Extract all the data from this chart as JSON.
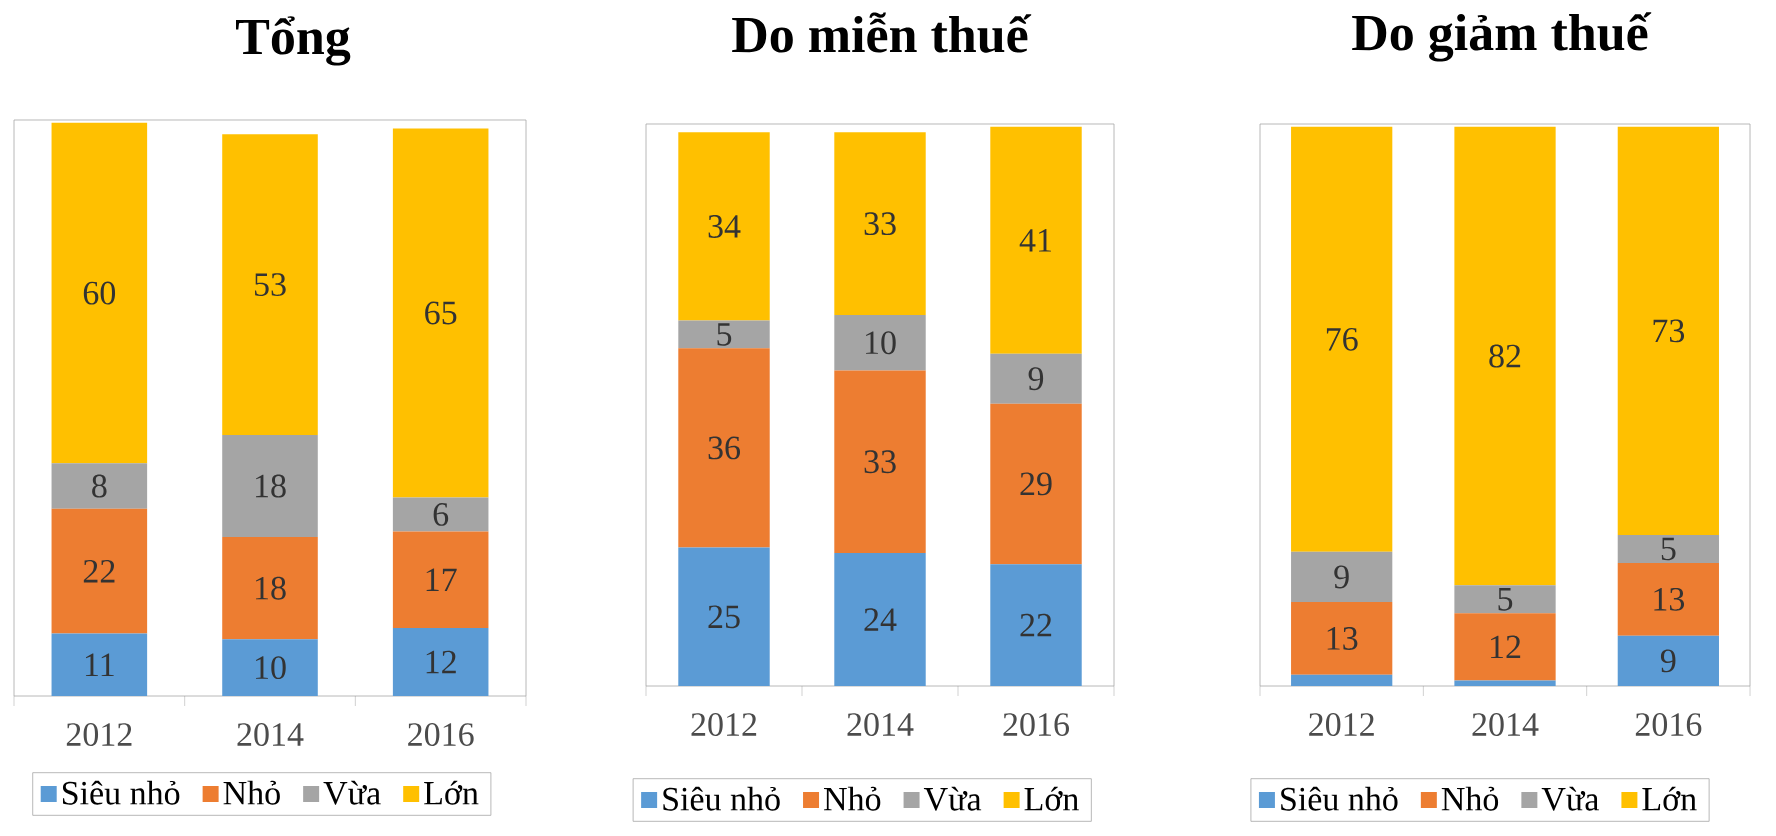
{
  "chart_data": [
    {
      "type": "bar",
      "title": "Tổng",
      "stacked": true,
      "data_labels": true,
      "legend": "bottom",
      "categories": [
        "2012",
        "2014",
        "2016"
      ],
      "series": [
        {
          "name": "Siêu nhỏ",
          "color": "#5b9bd5",
          "values": [
            11,
            10,
            12
          ]
        },
        {
          "name": "Nhỏ",
          "color": "#ed7d31",
          "values": [
            22,
            18,
            17
          ]
        },
        {
          "name": "Vừa",
          "color": "#a5a5a5",
          "values": [
            8,
            18,
            6
          ]
        },
        {
          "name": "Lớn",
          "color": "#ffc000",
          "values": [
            60,
            53,
            65
          ]
        }
      ]
    },
    {
      "type": "bar",
      "title": "Do miễn thuế",
      "stacked": true,
      "data_labels": true,
      "legend": "bottom",
      "categories": [
        "2012",
        "2014",
        "2016"
      ],
      "series": [
        {
          "name": "Siêu nhỏ",
          "color": "#5b9bd5",
          "values": [
            25,
            24,
            22
          ]
        },
        {
          "name": "Nhỏ",
          "color": "#ed7d31",
          "values": [
            36,
            33,
            29
          ]
        },
        {
          "name": "Vừa",
          "color": "#a5a5a5",
          "values": [
            5,
            10,
            9
          ]
        },
        {
          "name": "Lớn",
          "color": "#ffc000",
          "values": [
            34,
            33,
            41
          ]
        }
      ]
    },
    {
      "type": "bar",
      "title": "Do giảm thuế",
      "stacked": true,
      "legend": "bottom",
      "categories": [
        "2012",
        "2014",
        "2016"
      ],
      "series": [
        {
          "name": "Siêu nhỏ",
          "color": "#5b9bd5",
          "values": [
            2,
            1,
            9
          ],
          "value_labels": [
            null,
            null,
            "9"
          ]
        },
        {
          "name": "Nhỏ",
          "color": "#ed7d31",
          "values": [
            13,
            12,
            13
          ],
          "value_labels": [
            "13",
            "12",
            "13"
          ]
        },
        {
          "name": "Vừa",
          "color": "#a5a5a5",
          "values": [
            9,
            5,
            5
          ],
          "value_labels": [
            "9",
            "5",
            "5"
          ]
        },
        {
          "name": "Lớn",
          "color": "#ffc000",
          "values": [
            76,
            82,
            73
          ],
          "value_labels": [
            "76",
            "82",
            "73"
          ]
        }
      ]
    }
  ]
}
